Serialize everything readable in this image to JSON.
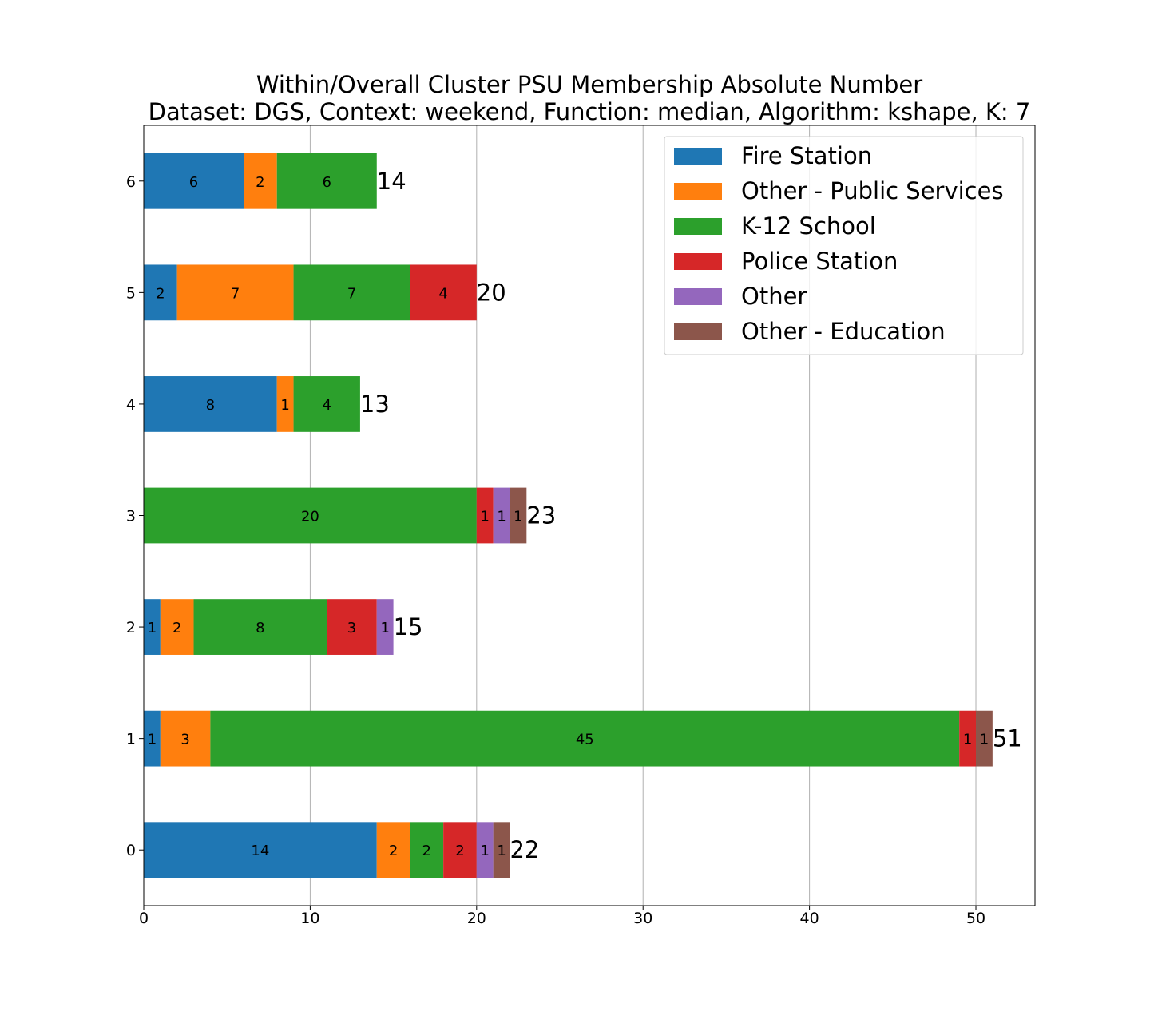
{
  "chart_data": {
    "type": "bar",
    "orientation": "horizontal",
    "stacked": true,
    "title": "Within/Overall Cluster PSU Membership Absolute Number",
    "subtitle": "Dataset: DGS, Context: weekend, Function: median, Algorithm: kshape, K: 7",
    "xlabel": "",
    "ylabel": "",
    "xlim": [
      0,
      53.55
    ],
    "x_ticks": [
      0,
      10,
      20,
      30,
      40,
      50
    ],
    "grid": "vertical",
    "legend_placement": "top-right",
    "categories": [
      "0",
      "1",
      "2",
      "3",
      "4",
      "5",
      "6"
    ],
    "series": [
      {
        "name": "Fire Station",
        "color": "#1f77b4",
        "values": [
          14,
          1,
          1,
          0,
          8,
          2,
          6
        ]
      },
      {
        "name": "Other - Public Services",
        "color": "#ff7f0e",
        "values": [
          2,
          3,
          2,
          0,
          1,
          7,
          2
        ]
      },
      {
        "name": "K-12 School",
        "color": "#2ca02c",
        "values": [
          2,
          45,
          8,
          20,
          4,
          7,
          6
        ]
      },
      {
        "name": "Police Station",
        "color": "#d62728",
        "values": [
          2,
          1,
          3,
          1,
          0,
          4,
          0
        ]
      },
      {
        "name": "Other",
        "color": "#9467bd",
        "values": [
          1,
          0,
          1,
          1,
          0,
          0,
          0
        ]
      },
      {
        "name": "Other - Education",
        "color": "#8c564b",
        "values": [
          1,
          1,
          0,
          1,
          0,
          0,
          0
        ]
      }
    ],
    "totals": [
      22,
      51,
      15,
      23,
      13,
      20,
      14
    ]
  }
}
